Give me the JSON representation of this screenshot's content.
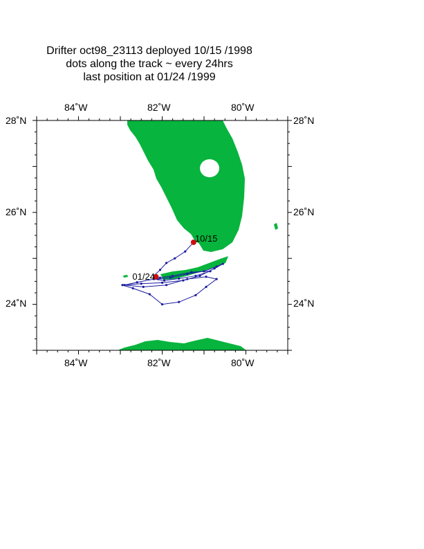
{
  "title_lines": [
    "Drifter oct98_23113  deployed  10/15 /1998",
    "dots along the track ~ every 24hrs",
    "last position at 01/24 /1999"
  ],
  "axes": {
    "lon_labels": [
      "84˚W",
      "82˚W",
      "80˚W"
    ],
    "lat_labels": [
      "28˚N",
      "26˚N",
      "24˚N"
    ],
    "lon_range": [
      -85,
      -79
    ],
    "lat_range": [
      23,
      28
    ]
  },
  "labels": {
    "deploy": "10/15",
    "last": "01/24"
  },
  "colors": {
    "land": "#07b43d",
    "track": "#1a1aa0",
    "marker": "#cc1010",
    "frame": "#000000"
  },
  "track": {
    "deploy_lonlat": [
      -81.25,
      25.35
    ],
    "last_lonlat": [
      -82.15,
      24.6
    ],
    "path_lonlat": [
      [
        -81.25,
        25.35
      ],
      [
        -81.45,
        25.15
      ],
      [
        -81.7,
        25.0
      ],
      [
        -81.9,
        24.9
      ],
      [
        -82.05,
        24.75
      ],
      [
        -82.2,
        24.62
      ],
      [
        -82.1,
        24.55
      ],
      [
        -81.8,
        24.58
      ],
      [
        -81.4,
        24.66
      ],
      [
        -81.0,
        24.72
      ],
      [
        -80.7,
        24.82
      ],
      [
        -80.55,
        24.88
      ],
      [
        -80.75,
        24.78
      ],
      [
        -81.1,
        24.62
      ],
      [
        -81.5,
        24.52
      ],
      [
        -82.0,
        24.47
      ],
      [
        -82.5,
        24.45
      ],
      [
        -82.95,
        24.42
      ],
      [
        -82.7,
        24.35
      ],
      [
        -82.3,
        24.22
      ],
      [
        -82.0,
        24.0
      ],
      [
        -81.6,
        24.05
      ],
      [
        -81.2,
        24.2
      ],
      [
        -80.95,
        24.38
      ],
      [
        -80.7,
        24.55
      ],
      [
        -80.95,
        24.6
      ],
      [
        -81.4,
        24.55
      ],
      [
        -81.9,
        24.42
      ],
      [
        -82.45,
        24.38
      ],
      [
        -82.9,
        24.42
      ],
      [
        -82.6,
        24.48
      ],
      [
        -82.2,
        24.55
      ],
      [
        -81.95,
        24.52
      ],
      [
        -81.6,
        24.56
      ],
      [
        -81.2,
        24.62
      ],
      [
        -80.85,
        24.72
      ],
      [
        -81.3,
        24.7
      ],
      [
        -81.75,
        24.62
      ],
      [
        -82.05,
        24.58
      ],
      [
        -82.15,
        24.6
      ]
    ]
  }
}
